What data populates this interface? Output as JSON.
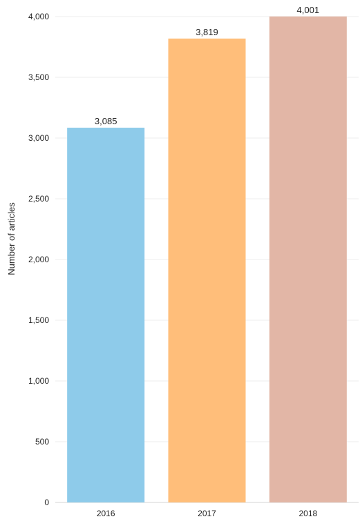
{
  "chart_data": {
    "type": "bar",
    "title": "",
    "xlabel": "",
    "ylabel": "Number of articles",
    "categories": [
      "2016",
      "2017",
      "2018"
    ],
    "values": [
      3085,
      3819,
      4001
    ],
    "value_labels": [
      "3,085",
      "3,819",
      "4,001"
    ],
    "colors": [
      "#8ecbea",
      "#ffbe7a",
      "#e2b6a6"
    ],
    "ylim": [
      0,
      4000
    ],
    "yticks": [
      0,
      500,
      1000,
      1500,
      2000,
      2500,
      3000,
      3500,
      4000
    ],
    "ytick_labels": [
      "0",
      "500",
      "1,000",
      "1,500",
      "2,000",
      "2,500",
      "3,000",
      "3,500",
      "4,000"
    ],
    "grid": true,
    "legend": "none"
  }
}
